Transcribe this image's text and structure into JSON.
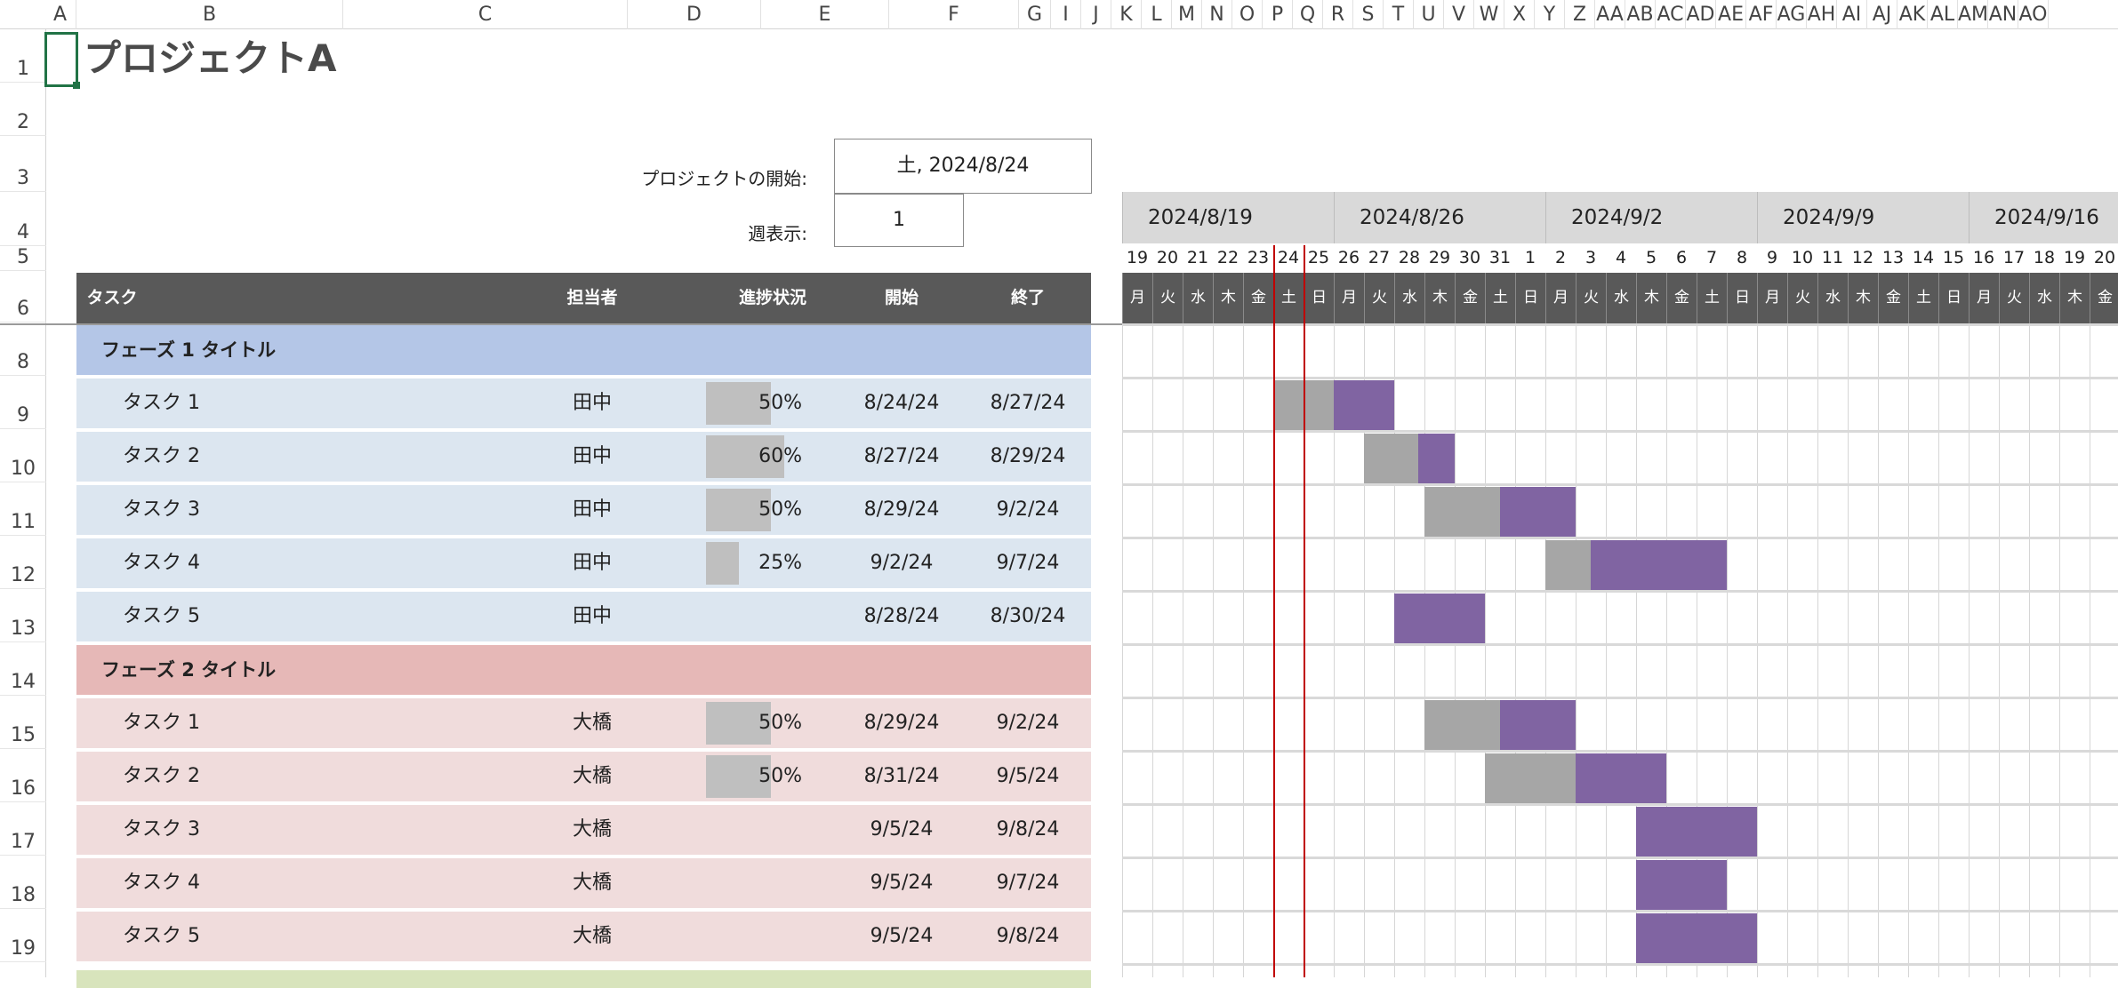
{
  "columns": [
    "A",
    "B",
    "C",
    "D",
    "E",
    "F",
    "G",
    "I",
    "J",
    "K",
    "L",
    "M",
    "N",
    "O",
    "P",
    "Q",
    "R",
    "S",
    "T",
    "U",
    "V",
    "W",
    "X",
    "Y",
    "Z",
    "AA",
    "AB",
    "AC",
    "AD",
    "AE",
    "AF",
    "AG",
    "AH",
    "AI",
    "AJ",
    "AK",
    "AL",
    "AM",
    "AN",
    "AO"
  ],
  "rows": [
    "1",
    "2",
    "3",
    "4",
    "5",
    "6",
    "8",
    "9",
    "10",
    "11",
    "12",
    "13",
    "14",
    "15",
    "16",
    "17",
    "18",
    "19"
  ],
  "title": "プロジェクトA",
  "project_start_label": "プロジェクトの開始:",
  "project_start_value": "土, 2024/8/24",
  "week_display_label": "週表示:",
  "week_display_value": "1",
  "headers": {
    "task": "タスク",
    "owner": "担当者",
    "progress": "進捗状況",
    "start": "開始",
    "end": "終了"
  },
  "weeks": [
    "2024/8/19",
    "2024/8/26",
    "2024/9/2",
    "2024/9/9",
    "2024/9/16"
  ],
  "day_numbers": [
    "19",
    "20",
    "21",
    "22",
    "23",
    "24",
    "25",
    "26",
    "27",
    "28",
    "29",
    "30",
    "31",
    "1",
    "2",
    "3",
    "4",
    "5",
    "6",
    "7",
    "8",
    "9",
    "10",
    "11",
    "12",
    "13",
    "14",
    "15",
    "16",
    "17",
    "18",
    "19",
    "20"
  ],
  "weekdays": [
    "月",
    "火",
    "水",
    "木",
    "金",
    "土",
    "日",
    "月",
    "火",
    "水",
    "木",
    "金",
    "土",
    "日",
    "月",
    "火",
    "水",
    "木",
    "金",
    "土",
    "日",
    "月",
    "火",
    "水",
    "木",
    "金",
    "土",
    "日",
    "月",
    "火",
    "水",
    "木",
    "金"
  ],
  "today_day_index": 5,
  "colors": {
    "phase1_header": "#b4c6e7",
    "phase1_row": "#dce6f0",
    "phase2_header": "#e6b8b7",
    "phase2_row": "#f0dcdc",
    "phase3_peek": "#d8e4bc",
    "bar_done": "#a6a6a6",
    "bar_todo": "#8064a2",
    "header_dark": "#595959",
    "today_line": "#c00000"
  },
  "phases": [
    {
      "title": "フェーズ 1 タイトル",
      "tasks": [
        {
          "name": "タスク 1",
          "owner": "田中",
          "progress": "50%",
          "progress_value": 0.5,
          "start": "8/24/24",
          "end": "8/27/24",
          "start_day": 5,
          "days": 4
        },
        {
          "name": "タスク 2",
          "owner": "田中",
          "progress": "60%",
          "progress_value": 0.6,
          "start": "8/27/24",
          "end": "8/29/24",
          "start_day": 8,
          "days": 3
        },
        {
          "name": "タスク 3",
          "owner": "田中",
          "progress": "50%",
          "progress_value": 0.5,
          "start": "8/29/24",
          "end": "9/2/24",
          "start_day": 10,
          "days": 5
        },
        {
          "name": "タスク 4",
          "owner": "田中",
          "progress": "25%",
          "progress_value": 0.25,
          "start": "9/2/24",
          "end": "9/7/24",
          "start_day": 14,
          "days": 6
        },
        {
          "name": "タスク 5",
          "owner": "田中",
          "progress": "",
          "progress_value": 0,
          "start": "8/28/24",
          "end": "8/30/24",
          "start_day": 9,
          "days": 3
        }
      ]
    },
    {
      "title": "フェーズ 2 タイトル",
      "tasks": [
        {
          "name": "タスク 1",
          "owner": "大橋",
          "progress": "50%",
          "progress_value": 0.5,
          "start": "8/29/24",
          "end": "9/2/24",
          "start_day": 10,
          "days": 5
        },
        {
          "name": "タスク 2",
          "owner": "大橋",
          "progress": "50%",
          "progress_value": 0.5,
          "start": "8/31/24",
          "end": "9/5/24",
          "start_day": 12,
          "days": 6
        },
        {
          "name": "タスク 3",
          "owner": "大橋",
          "progress": "",
          "progress_value": 0,
          "start": "9/5/24",
          "end": "9/8/24",
          "start_day": 17,
          "days": 4
        },
        {
          "name": "タスク 4",
          "owner": "大橋",
          "progress": "",
          "progress_value": 0,
          "start": "9/5/24",
          "end": "9/7/24",
          "start_day": 17,
          "days": 3
        },
        {
          "name": "タスク 5",
          "owner": "大橋",
          "progress": "",
          "progress_value": 0,
          "start": "9/5/24",
          "end": "9/8/24",
          "start_day": 17,
          "days": 4
        }
      ]
    }
  ]
}
